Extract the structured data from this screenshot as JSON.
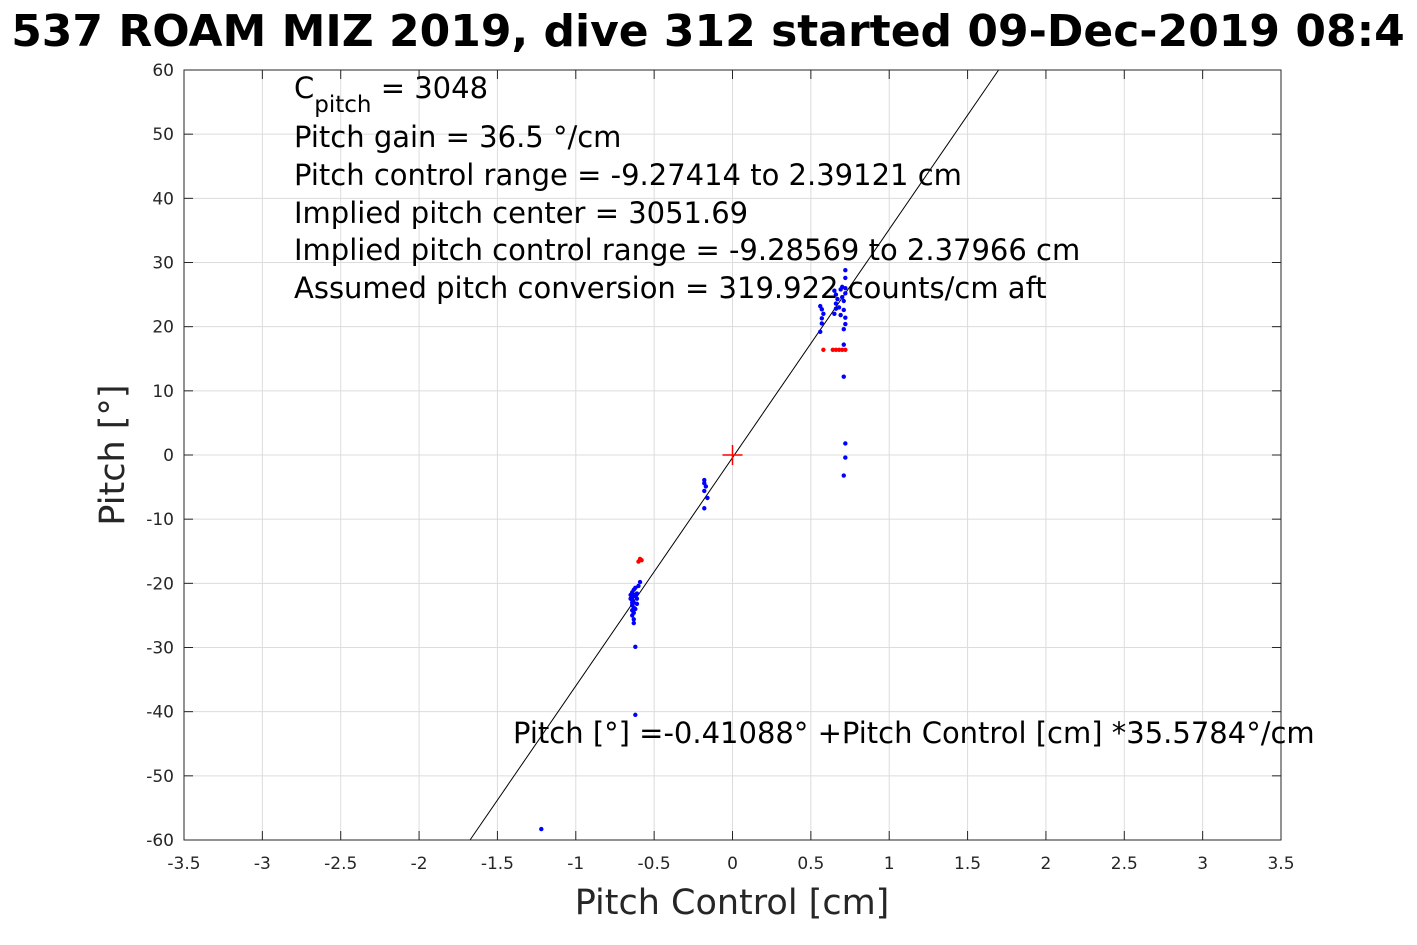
{
  "chart_data": {
    "type": "scatter",
    "title": "537 ROAM MIZ 2019, dive 312 started 09-Dec-2019 08:4",
    "xlabel": "Pitch Control [cm]",
    "ylabel": "Pitch [°]",
    "xlim": [
      -3.5,
      3.5
    ],
    "ylim": [
      -60,
      60
    ],
    "x_ticks": [
      -3.5,
      -3,
      -2.5,
      -2,
      -1.5,
      -1,
      -0.5,
      0,
      0.5,
      1,
      1.5,
      2,
      2.5,
      3,
      3.5
    ],
    "x_tick_labels": [
      "-3.5",
      "-3",
      "-2.5",
      "-2",
      "-1.5",
      "-1",
      "-0.5",
      "0",
      "0.5",
      "1",
      "1.5",
      "2",
      "2.5",
      "3",
      "3.5"
    ],
    "y_ticks": [
      60,
      50,
      40,
      30,
      20,
      10,
      0,
      -10,
      -20,
      -30,
      -40,
      -50,
      -60
    ],
    "y_tick_labels": [
      "60",
      "50",
      "40",
      "30",
      "20",
      "10",
      "0",
      "-10",
      "-20",
      "-30",
      "-40",
      "-50",
      "-60"
    ],
    "grid": true,
    "annotations": {
      "c_pitch_main": "C",
      "c_pitch_sub": "pitch",
      "c_pitch_value": " = 3048",
      "lines": [
        "Pitch gain = 36.5 °/cm",
        "Pitch control range = -9.27414 to 2.39121 cm",
        "Implied pitch center = 3051.69",
        "Implied pitch control range = -9.28569 to 2.37966 cm",
        "Assumed pitch conversion = 319.922 counts/cm aft"
      ],
      "fit_equation": "Pitch [°] =-0.41088° +Pitch Control [cm] *35.5784°/cm"
    },
    "fit_line": {
      "intercept": -0.41088,
      "slope": 35.5784,
      "color": "#000000"
    },
    "center_marker": {
      "x": 0,
      "y": 0,
      "color": "#ff0000",
      "shape": "plus"
    },
    "series": [
      {
        "color": "#0000ff",
        "points": [
          [
            -1.22,
            -58.3
          ],
          [
            -0.62,
            -40.5
          ],
          [
            -0.62,
            -29.9
          ],
          [
            -0.63,
            -26.2
          ],
          [
            -0.63,
            -25.6
          ],
          [
            -0.64,
            -25.0
          ],
          [
            -0.63,
            -24.6
          ],
          [
            -0.64,
            -24.2
          ],
          [
            -0.63,
            -23.8
          ],
          [
            -0.64,
            -23.4
          ],
          [
            -0.63,
            -23.0
          ],
          [
            -0.64,
            -22.6
          ],
          [
            -0.64,
            -22.2
          ],
          [
            -0.65,
            -21.8
          ],
          [
            -0.64,
            -21.4
          ],
          [
            -0.63,
            -21.0
          ],
          [
            -0.62,
            -20.7
          ],
          [
            -0.61,
            -21.6
          ],
          [
            -0.6,
            -20.4
          ],
          [
            -0.59,
            -19.8
          ],
          [
            -0.61,
            -22.4
          ],
          [
            -0.62,
            -24.0
          ],
          [
            -0.64,
            -23.0
          ],
          [
            -0.65,
            -22.4
          ],
          [
            -0.63,
            -21.8
          ],
          [
            -0.62,
            -22.0
          ],
          [
            -0.61,
            -23.2
          ],
          [
            -0.18,
            -8.3
          ],
          [
            -0.16,
            -6.7
          ],
          [
            -0.18,
            -5.6
          ],
          [
            -0.17,
            -4.9
          ],
          [
            -0.18,
            -4.4
          ],
          [
            -0.18,
            -3.9
          ],
          [
            0.56,
            19.2
          ],
          [
            0.57,
            20.5
          ],
          [
            0.57,
            21.3
          ],
          [
            0.58,
            22.0
          ],
          [
            0.57,
            22.7
          ],
          [
            0.56,
            23.2
          ],
          [
            0.65,
            22.0
          ],
          [
            0.66,
            22.8
          ],
          [
            0.66,
            23.6
          ],
          [
            0.67,
            24.3
          ],
          [
            0.66,
            25.0
          ],
          [
            0.65,
            25.6
          ],
          [
            0.68,
            23.0
          ],
          [
            0.69,
            21.8
          ],
          [
            0.7,
            24.6
          ],
          [
            0.69,
            25.8
          ],
          [
            0.7,
            26.2
          ],
          [
            0.71,
            24.0
          ],
          [
            0.71,
            22.6
          ],
          [
            0.72,
            21.4
          ],
          [
            0.72,
            20.4
          ],
          [
            0.71,
            19.6
          ],
          [
            0.72,
            25.2
          ],
          [
            0.72,
            26.0
          ],
          [
            0.72,
            27.6
          ],
          [
            0.72,
            28.8
          ],
          [
            0.71,
            17.2
          ],
          [
            0.71,
            12.2
          ],
          [
            0.72,
            1.8
          ],
          [
            0.72,
            -0.4
          ],
          [
            0.71,
            -3.2
          ]
        ]
      },
      {
        "color": "#ff0000",
        "points": [
          [
            -0.58,
            -16.4
          ],
          [
            -0.59,
            -16.2
          ],
          [
            -0.6,
            -16.6
          ],
          [
            0.58,
            16.4
          ],
          [
            0.64,
            16.4
          ],
          [
            0.66,
            16.4
          ],
          [
            0.68,
            16.4
          ],
          [
            0.7,
            16.4
          ],
          [
            0.72,
            16.4
          ]
        ]
      }
    ]
  }
}
